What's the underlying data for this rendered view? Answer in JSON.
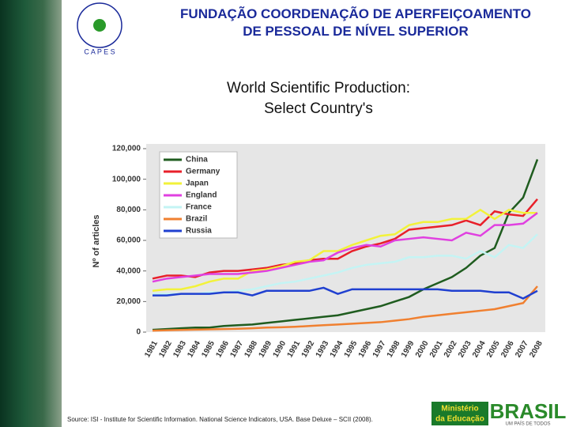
{
  "slide": {
    "header": [
      "FUNDAÇÃO COORDENAÇÃO DE APERFEIÇOAMENTO",
      "DE PESSOAL DE NÍVEL SUPERIOR"
    ],
    "logo": "C A P E S",
    "source": "Source: ISI - Institute for Scientific Information. National Science Indicators, USA. Base Deluxe – SCII (2008).",
    "ministry": [
      "Ministério",
      "da Educação"
    ],
    "brand": "BRASIL",
    "slogan": "UM PAÍS DE TODOS"
  },
  "chart_data": {
    "type": "line",
    "title": [
      "World Scientific Production:",
      "Select Country's"
    ],
    "y_label": "Nº of articles",
    "categories": [
      "1981",
      "1982",
      "1983",
      "1984",
      "1985",
      "1986",
      "1987",
      "1988",
      "1989",
      "1990",
      "1991",
      "1992",
      "1993",
      "1994",
      "1995",
      "1996",
      "1997",
      "1998",
      "1999",
      "2000",
      "2001",
      "2002",
      "2003",
      "2004",
      "2005",
      "2006",
      "2007",
      "2008"
    ],
    "ylim": [
      0,
      120000
    ],
    "yticks": [
      0,
      {
        "value": 20000,
        "label": "20,000"
      },
      {
        "value": 40000,
        "label": "40,000"
      },
      {
        "value": 60000,
        "label": "60,000"
      },
      {
        "value": 80000,
        "label": "80,000"
      },
      {
        "value": 100000,
        "label": "100,000"
      },
      {
        "value": 120000,
        "label": "120,000"
      }
    ],
    "legend": "upper left",
    "series": [
      {
        "name": "China",
        "color": "#1f5c1f",
        "values": [
          1500,
          2000,
          2500,
          3000,
          3000,
          4000,
          4500,
          5000,
          6000,
          7000,
          8000,
          9000,
          10000,
          11000,
          13000,
          15000,
          17000,
          20000,
          23000,
          28000,
          32000,
          36000,
          42000,
          50000,
          55000,
          78000,
          88000,
          113000
        ]
      },
      {
        "name": "Germany",
        "color": "#e8202a",
        "values": [
          35000,
          37000,
          37000,
          36000,
          39000,
          40000,
          40000,
          41000,
          42000,
          44000,
          45000,
          47000,
          48000,
          48000,
          53000,
          56000,
          58000,
          61000,
          67000,
          68000,
          69000,
          70000,
          73000,
          70000,
          79000,
          77000,
          76000,
          87000
        ]
      },
      {
        "name": "Japan",
        "color": "#f2f23a",
        "values": [
          27000,
          28000,
          28000,
          30000,
          33000,
          35000,
          35000,
          40000,
          41000,
          43000,
          46000,
          47000,
          53000,
          53000,
          57000,
          60000,
          63000,
          64000,
          70000,
          72000,
          72000,
          74000,
          74000,
          80000,
          74000,
          80000,
          78000,
          78000
        ]
      },
      {
        "name": "England",
        "color": "#e040e0",
        "values": [
          33000,
          35000,
          36000,
          37000,
          38000,
          38000,
          38000,
          39000,
          40000,
          42000,
          44000,
          46000,
          47000,
          52000,
          55000,
          57000,
          56000,
          60000,
          61000,
          62000,
          61000,
          60000,
          65000,
          63000,
          70000,
          70000,
          71000,
          78000
        ]
      },
      {
        "name": "France",
        "color": "#c4f4f4",
        "values": [
          25000,
          25000,
          25000,
          25000,
          26000,
          26000,
          27000,
          28000,
          30000,
          32000,
          33000,
          35000,
          37000,
          39000,
          42000,
          44000,
          45000,
          46000,
          49000,
          49000,
          50000,
          50000,
          48000,
          53000,
          49000,
          57000,
          55000,
          64000
        ]
      },
      {
        "name": "Brazil",
        "color": "#f08030",
        "values": [
          1000,
          1200,
          1400,
          1600,
          1800,
          2000,
          2200,
          2500,
          3000,
          3200,
          3500,
          4000,
          4500,
          5000,
          5500,
          6000,
          6500,
          7500,
          8500,
          10000,
          11000,
          12000,
          13000,
          14000,
          15000,
          17000,
          19000,
          30000
        ]
      },
      {
        "name": "Russia",
        "color": "#2040d0",
        "values": [
          24000,
          24000,
          25000,
          25000,
          25000,
          26000,
          26000,
          24000,
          27000,
          27000,
          27000,
          27000,
          29000,
          25000,
          28000,
          28000,
          28000,
          28000,
          28000,
          28000,
          28000,
          27000,
          27000,
          27000,
          26000,
          26000,
          22000,
          27000
        ]
      }
    ]
  }
}
